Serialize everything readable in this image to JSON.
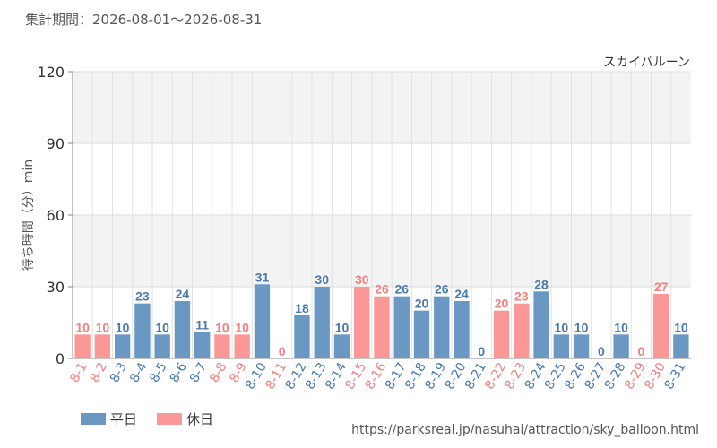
{
  "period_label": "集計期間：2026-08-01～2026-08-31",
  "source_url": "https://parksreal.jp/nasuhai/attraction/sky_balloon.html",
  "colors": {
    "weekday": "#6b98c3",
    "holiday": "#f99897",
    "weekday_text": "#4a79ad",
    "holiday_text": "#f08080"
  },
  "chart_data": {
    "type": "bar",
    "title": "スカイバルーン",
    "ylabel": "待ち時間（分）min",
    "xlabel": "",
    "ylim": [
      0,
      120
    ],
    "yticks": [
      "0",
      "30",
      "60",
      "90",
      "120"
    ],
    "grid": true,
    "legend_position": "bottom-left",
    "legend": [
      {
        "label": "平日",
        "kind": "weekday"
      },
      {
        "label": "休日",
        "kind": "holiday"
      }
    ],
    "categories": [
      "8-1",
      "8-2",
      "8-3",
      "8-4",
      "8-5",
      "8-6",
      "8-7",
      "8-8",
      "8-9",
      "8-10",
      "8-11",
      "8-12",
      "8-13",
      "8-14",
      "8-15",
      "8-16",
      "8-17",
      "8-18",
      "8-19",
      "8-20",
      "8-21",
      "8-22",
      "8-23",
      "8-24",
      "8-25",
      "8-26",
      "8-27",
      "8-28",
      "8-29",
      "8-30",
      "8-31"
    ],
    "values": [
      10,
      10,
      10,
      23,
      10,
      24,
      11,
      10,
      10,
      31,
      0,
      18,
      30,
      10,
      30,
      26,
      26,
      20,
      26,
      24,
      0,
      20,
      23,
      28,
      10,
      10,
      0,
      10,
      0,
      27,
      10
    ],
    "day_kind": [
      "holiday",
      "holiday",
      "weekday",
      "weekday",
      "weekday",
      "weekday",
      "weekday",
      "holiday",
      "holiday",
      "weekday",
      "holiday",
      "weekday",
      "weekday",
      "weekday",
      "holiday",
      "holiday",
      "weekday",
      "weekday",
      "weekday",
      "weekday",
      "weekday",
      "holiday",
      "holiday",
      "weekday",
      "weekday",
      "weekday",
      "weekday",
      "weekday",
      "holiday",
      "holiday",
      "weekday"
    ]
  }
}
